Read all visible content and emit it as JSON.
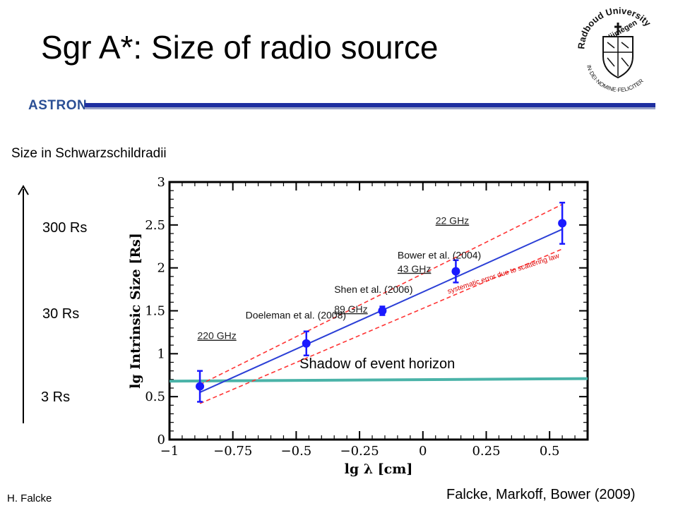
{
  "slide": {
    "title": "Sgr A*: Size of radio source",
    "institute_logo_text": "ASTRON",
    "university_seal_text": [
      "Radboud University",
      "Nijmegen",
      "IN·DEI·NOMINE·FELICITER"
    ],
    "size_caption": "Size in Schwarzschildradii",
    "rs_labels": [
      "300 Rs",
      "30 Rs",
      "3 Rs"
    ],
    "author": "H. Falcke",
    "citation": "Falcke, Markoff, Bower (2009)",
    "colors": {
      "header_line": "#1e2fa0",
      "astron_text": "#2b4f95"
    }
  },
  "chart_data": {
    "type": "scatter",
    "title": "",
    "xlabel": "lg λ [cm]",
    "ylabel": "lg Intrinsic  Size [Rs]",
    "xlim": [
      -1,
      0.65
    ],
    "ylim": [
      0,
      3
    ],
    "xticks": [
      -1,
      -0.75,
      -0.5,
      -0.25,
      0,
      0.25,
      0.5
    ],
    "xtick_labels": [
      "−1",
      "−0.75",
      "−0.5",
      "−0.25",
      "0",
      "0.25",
      "0.5"
    ],
    "yticks": [
      0,
      0.5,
      1,
      1.5,
      2,
      2.5,
      3
    ],
    "ytick_labels": [
      "0",
      "0.5",
      "1",
      "1.5",
      "2",
      "2.5",
      "3"
    ],
    "grid": false,
    "series": [
      {
        "points": [
          {
            "x": -0.88,
            "y": 0.62,
            "yerr": 0.18
          },
          {
            "x": -0.46,
            "y": 1.12,
            "yerr": 0.14
          },
          {
            "x": -0.16,
            "y": 1.5,
            "yerr": 0.05
          },
          {
            "x": 0.13,
            "y": 1.96,
            "yerr": 0.13
          },
          {
            "x": 0.55,
            "y": 2.52,
            "yerr": 0.24
          }
        ],
        "color": "#1a1aff"
      }
    ],
    "fit_line": {
      "x": [
        -0.88,
        0.55
      ],
      "y": [
        0.55,
        2.45
      ],
      "color": "#2b3fd6"
    },
    "error_band": [
      {
        "x": [
          -0.88,
          0.55
        ],
        "y": [
          0.64,
          2.74
        ],
        "color": "#ff3333"
      },
      {
        "x": [
          -0.88,
          0.55
        ],
        "y": [
          0.42,
          2.22
        ],
        "color": "#ff3333"
      }
    ],
    "horizon_line": {
      "y": 0.68,
      "y_end": 0.71,
      "label": "Shadow of event horizon",
      "color": "#4ab3a8"
    },
    "annotations": [
      {
        "text": "22 GHz",
        "x": 0.05,
        "y": 2.51,
        "kind": "freq"
      },
      {
        "text": "Bower et al. (2004)",
        "x": -0.1,
        "y": 2.11,
        "kind": "ref"
      },
      {
        "text": "43 GHz",
        "x": -0.1,
        "y": 1.95,
        "kind": "freq"
      },
      {
        "text": "Shen et al. (2006)",
        "x": -0.35,
        "y": 1.71,
        "kind": "ref"
      },
      {
        "text": "89 GHz",
        "x": -0.35,
        "y": 1.48,
        "kind": "freq"
      },
      {
        "text": "Doeleman et al. (2008)",
        "x": -0.7,
        "y": 1.41,
        "kind": "ref"
      },
      {
        "text": "220 GHz",
        "x": -0.89,
        "y": 1.17,
        "kind": "freq"
      },
      {
        "text": "systematic error due to scattering law",
        "x": 0.32,
        "y": 1.91,
        "kind": "note",
        "rotate": -18
      }
    ]
  }
}
